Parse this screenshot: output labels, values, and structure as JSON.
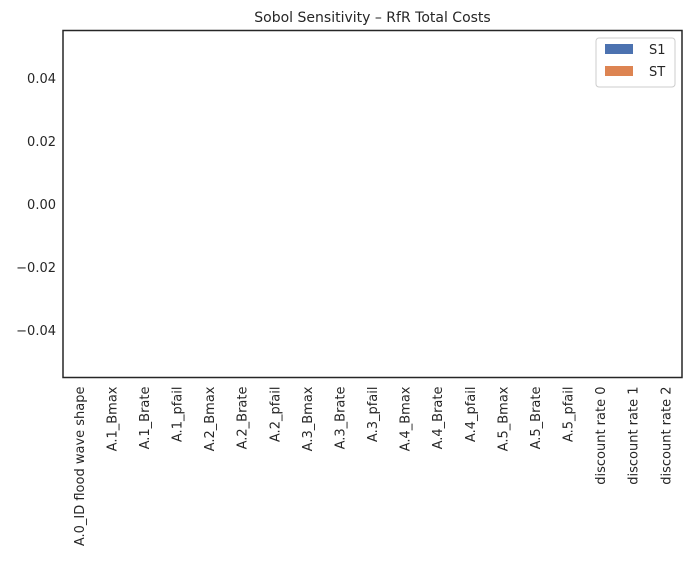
{
  "chart_data": {
    "type": "bar",
    "title": "Sobol Sensitivity – RfR Total Costs",
    "xlabel": "",
    "ylabel": "",
    "ylim": [
      -0.055,
      0.055
    ],
    "yticks": [
      0.04,
      0.02,
      0.0,
      -0.02,
      -0.04
    ],
    "ytick_labels": [
      "0.04",
      "0.02",
      "0.00",
      "−0.02",
      "−0.04"
    ],
    "categories": [
      "A.0_ID flood wave shape",
      "A.1_Bmax",
      "A.1_Brate",
      "A.1_pfail",
      "A.2_Bmax",
      "A.2_Brate",
      "A.2_pfail",
      "A.3_Bmax",
      "A.3_Brate",
      "A.3_pfail",
      "A.4_Bmax",
      "A.4_Brate",
      "A.4_pfail",
      "A.5_Bmax",
      "A.5_Brate",
      "A.5_pfail",
      "discount rate 0",
      "discount rate 1",
      "discount rate 2"
    ],
    "series": [
      {
        "name": "S1",
        "color": "#4c72b0",
        "values": [
          0,
          0,
          0,
          0,
          0,
          0,
          0,
          0,
          0,
          0,
          0,
          0,
          0,
          0,
          0,
          0,
          0,
          0,
          0
        ]
      },
      {
        "name": "ST",
        "color": "#dd8452",
        "values": [
          0,
          0,
          0,
          0,
          0,
          0,
          0,
          0,
          0,
          0,
          0,
          0,
          0,
          0,
          0,
          0,
          0,
          0,
          0
        ]
      }
    ],
    "grid": false,
    "legend_position": "top-right"
  }
}
